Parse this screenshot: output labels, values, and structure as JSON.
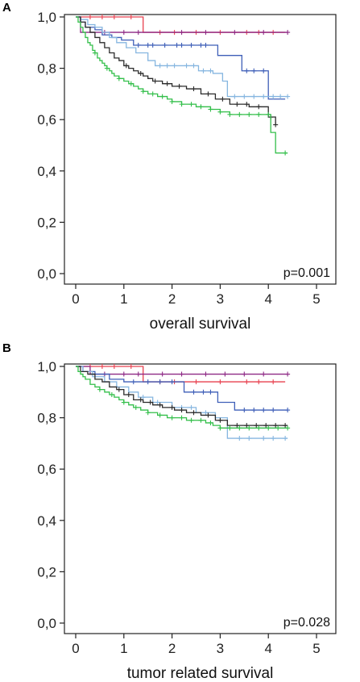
{
  "chart_data": [
    {
      "type": "line",
      "panel": "A",
      "xlabel": "overall survival",
      "ylabel": "",
      "xlim": [
        0,
        5
      ],
      "ylim": [
        0,
        1
      ],
      "xticks": [
        "0",
        "1",
        "2",
        "3",
        "4",
        "5"
      ],
      "yticks": [
        "0,0",
        "0,2",
        "0,4",
        "0,6",
        "0,8",
        "1,0"
      ],
      "annotation": "p=0.001",
      "grid": false,
      "series": [
        {
          "color": "#e8414f",
          "censor_color": "#e8414f",
          "x": [
            0,
            1.4,
            4.35
          ],
          "y": [
            1.0,
            0.94,
            0.94
          ],
          "censor_x": [
            0.3,
            0.55,
            0.8,
            1.15,
            1.75,
            2.05,
            2.5,
            3.0,
            3.55,
            3.8,
            4.1
          ]
        },
        {
          "color": "#8e2a86",
          "censor_color": "#8e2a86",
          "x": [
            0,
            0.1,
            4.4
          ],
          "y": [
            1.0,
            0.94,
            0.94
          ],
          "censor_x": [
            0.6,
            1.0,
            1.3,
            2.2,
            2.7,
            3.3,
            3.9,
            4.4
          ]
        },
        {
          "color": "#3f5fb8",
          "censor_color": "#3f5fb8",
          "x": [
            0,
            0.1,
            0.2,
            0.4,
            0.55,
            0.75,
            0.95,
            1.2,
            2.95,
            3.45,
            4.0,
            4.35
          ],
          "y": [
            1.0,
            0.98,
            0.96,
            0.95,
            0.93,
            0.92,
            0.91,
            0.89,
            0.85,
            0.79,
            0.68,
            0.68
          ],
          "censor_x": [
            1.3,
            1.5,
            1.6,
            1.85,
            2.1,
            2.2,
            2.4,
            2.6,
            2.7,
            3.55,
            3.7,
            3.9
          ]
        },
        {
          "color": "#86b6e0",
          "censor_color": "#86b6e0",
          "x": [
            0,
            0.1,
            0.25,
            0.4,
            0.55,
            0.7,
            0.85,
            1.05,
            1.25,
            1.5,
            1.65,
            2.2,
            2.55,
            2.85,
            3.05,
            3.15,
            4.4
          ],
          "y": [
            1.0,
            0.99,
            0.97,
            0.96,
            0.94,
            0.92,
            0.9,
            0.88,
            0.86,
            0.83,
            0.81,
            0.81,
            0.79,
            0.78,
            0.75,
            0.69,
            0.69
          ],
          "censor_x": [
            1.75,
            1.9,
            2.05,
            2.3,
            2.45,
            2.65,
            2.8,
            3.3,
            3.5,
            3.7,
            3.9,
            4.1,
            4.25,
            4.4
          ]
        },
        {
          "color": "#2b2b2b",
          "censor_color": "#2b2b2b",
          "x": [
            0,
            0.1,
            0.2,
            0.3,
            0.4,
            0.5,
            0.6,
            0.7,
            0.8,
            0.9,
            1.0,
            1.1,
            1.2,
            1.3,
            1.4,
            1.5,
            1.6,
            1.8,
            2.0,
            2.3,
            2.6,
            2.9,
            3.2,
            3.6,
            4.0,
            4.15
          ],
          "y": [
            1.0,
            0.98,
            0.96,
            0.94,
            0.92,
            0.9,
            0.88,
            0.86,
            0.84,
            0.83,
            0.81,
            0.8,
            0.79,
            0.78,
            0.77,
            0.76,
            0.75,
            0.74,
            0.73,
            0.72,
            0.7,
            0.68,
            0.66,
            0.65,
            0.61,
            0.58
          ],
          "censor_x": [
            1.05,
            1.35,
            1.65,
            1.9,
            2.15,
            2.45,
            2.75,
            3.05,
            3.35,
            3.55,
            3.8,
            4.05,
            4.15
          ]
        },
        {
          "color": "#33bf4a",
          "censor_color": "#33bf4a",
          "x": [
            0,
            0.05,
            0.1,
            0.15,
            0.2,
            0.25,
            0.3,
            0.35,
            0.4,
            0.45,
            0.5,
            0.55,
            0.6,
            0.65,
            0.7,
            0.75,
            0.8,
            0.9,
            1.0,
            1.1,
            1.2,
            1.3,
            1.4,
            1.5,
            1.6,
            1.7,
            1.8,
            1.9,
            2.0,
            2.1,
            2.2,
            2.3,
            2.5,
            2.8,
            3.0,
            3.2,
            3.5,
            3.8,
            4.05,
            4.15,
            4.4
          ],
          "y": [
            1.0,
            0.98,
            0.96,
            0.94,
            0.92,
            0.9,
            0.89,
            0.87,
            0.86,
            0.84,
            0.83,
            0.82,
            0.81,
            0.8,
            0.79,
            0.78,
            0.77,
            0.76,
            0.75,
            0.74,
            0.73,
            0.72,
            0.71,
            0.7,
            0.7,
            0.69,
            0.69,
            0.68,
            0.67,
            0.67,
            0.66,
            0.66,
            0.65,
            0.64,
            0.63,
            0.62,
            0.62,
            0.62,
            0.55,
            0.47,
            0.47
          ],
          "censor_x": [
            0.4,
            0.65,
            0.9,
            1.15,
            1.4,
            1.6,
            1.8,
            2.0,
            2.2,
            2.4,
            2.6,
            2.8,
            3.0,
            3.2,
            3.4,
            3.6,
            3.8,
            4.0,
            4.35
          ]
        }
      ]
    },
    {
      "type": "line",
      "panel": "B",
      "xlabel": "tumor related survival",
      "ylabel": "",
      "xlim": [
        0,
        5
      ],
      "ylim": [
        0,
        1
      ],
      "xticks": [
        "0",
        "1",
        "2",
        "3",
        "4",
        "5"
      ],
      "yticks": [
        "0,0",
        "0,2",
        "0,4",
        "0,6",
        "0,8",
        "1,0"
      ],
      "annotation": "p=0.028",
      "grid": false,
      "series": [
        {
          "color": "#e8414f",
          "censor_color": "#e8414f",
          "x": [
            0,
            1.4,
            4.35
          ],
          "y": [
            1.0,
            0.94,
            0.94
          ],
          "censor_x": [
            0.3,
            0.55,
            0.8,
            1.15,
            1.75,
            2.05,
            2.5,
            3.0,
            3.55,
            3.8,
            4.1
          ]
        },
        {
          "color": "#8e2a86",
          "censor_color": "#8e2a86",
          "x": [
            0,
            0.3,
            4.4
          ],
          "y": [
            1.0,
            0.97,
            0.97
          ],
          "censor_x": [
            0.6,
            1.0,
            1.3,
            1.8,
            2.2,
            2.7,
            3.1,
            3.5,
            3.9,
            4.4
          ]
        },
        {
          "color": "#3f5fb8",
          "censor_color": "#3f5fb8",
          "x": [
            0,
            0.15,
            0.4,
            0.7,
            1.0,
            2.25,
            2.95,
            3.3,
            4.4
          ],
          "y": [
            1.0,
            0.98,
            0.97,
            0.95,
            0.94,
            0.9,
            0.86,
            0.83,
            0.83
          ],
          "censor_x": [
            1.2,
            1.5,
            1.75,
            2.0,
            2.45,
            2.65,
            2.8,
            3.5,
            3.7,
            3.9,
            4.1,
            4.4
          ]
        },
        {
          "color": "#86b6e0",
          "censor_color": "#86b6e0",
          "x": [
            0,
            0.15,
            0.35,
            0.6,
            0.85,
            1.1,
            1.3,
            1.6,
            2.0,
            2.5,
            2.9,
            3.15,
            4.4
          ],
          "y": [
            1.0,
            0.98,
            0.96,
            0.94,
            0.92,
            0.9,
            0.88,
            0.86,
            0.84,
            0.82,
            0.8,
            0.72,
            0.72
          ],
          "censor_x": [
            1.4,
            1.7,
            2.2,
            2.4,
            2.7,
            3.4,
            3.6,
            3.9,
            4.1,
            4.35
          ]
        },
        {
          "color": "#2b2b2b",
          "censor_color": "#2b2b2b",
          "x": [
            0,
            0.1,
            0.25,
            0.4,
            0.55,
            0.7,
            0.85,
            1.0,
            1.2,
            1.4,
            1.6,
            1.8,
            2.05,
            2.3,
            2.6,
            2.9,
            3.15,
            3.6,
            4.4
          ],
          "y": [
            1.0,
            0.98,
            0.97,
            0.95,
            0.94,
            0.92,
            0.91,
            0.89,
            0.87,
            0.86,
            0.85,
            0.84,
            0.83,
            0.82,
            0.81,
            0.79,
            0.77,
            0.77,
            0.77
          ],
          "censor_x": [
            0.9,
            1.1,
            1.35,
            1.55,
            1.75,
            2.0,
            2.2,
            2.45,
            2.75,
            3.0,
            3.35,
            3.55,
            3.75,
            3.95,
            4.15,
            4.35
          ]
        },
        {
          "color": "#33bf4a",
          "censor_color": "#33bf4a",
          "x": [
            0,
            0.05,
            0.1,
            0.15,
            0.2,
            0.3,
            0.4,
            0.5,
            0.6,
            0.7,
            0.8,
            0.9,
            1.0,
            1.1,
            1.2,
            1.35,
            1.5,
            1.7,
            1.9,
            2.1,
            2.3,
            2.5,
            2.7,
            2.85,
            3.0,
            4.4
          ],
          "y": [
            1.0,
            0.98,
            0.97,
            0.96,
            0.95,
            0.93,
            0.92,
            0.91,
            0.9,
            0.89,
            0.88,
            0.87,
            0.86,
            0.85,
            0.84,
            0.83,
            0.82,
            0.81,
            0.8,
            0.8,
            0.79,
            0.79,
            0.78,
            0.77,
            0.76,
            0.76
          ],
          "censor_x": [
            0.5,
            0.75,
            1.0,
            1.25,
            1.5,
            1.75,
            2.0,
            2.2,
            2.4,
            2.6,
            2.8,
            3.0,
            3.2,
            3.4,
            3.6,
            3.8,
            4.0,
            4.2,
            4.4
          ]
        }
      ]
    }
  ]
}
